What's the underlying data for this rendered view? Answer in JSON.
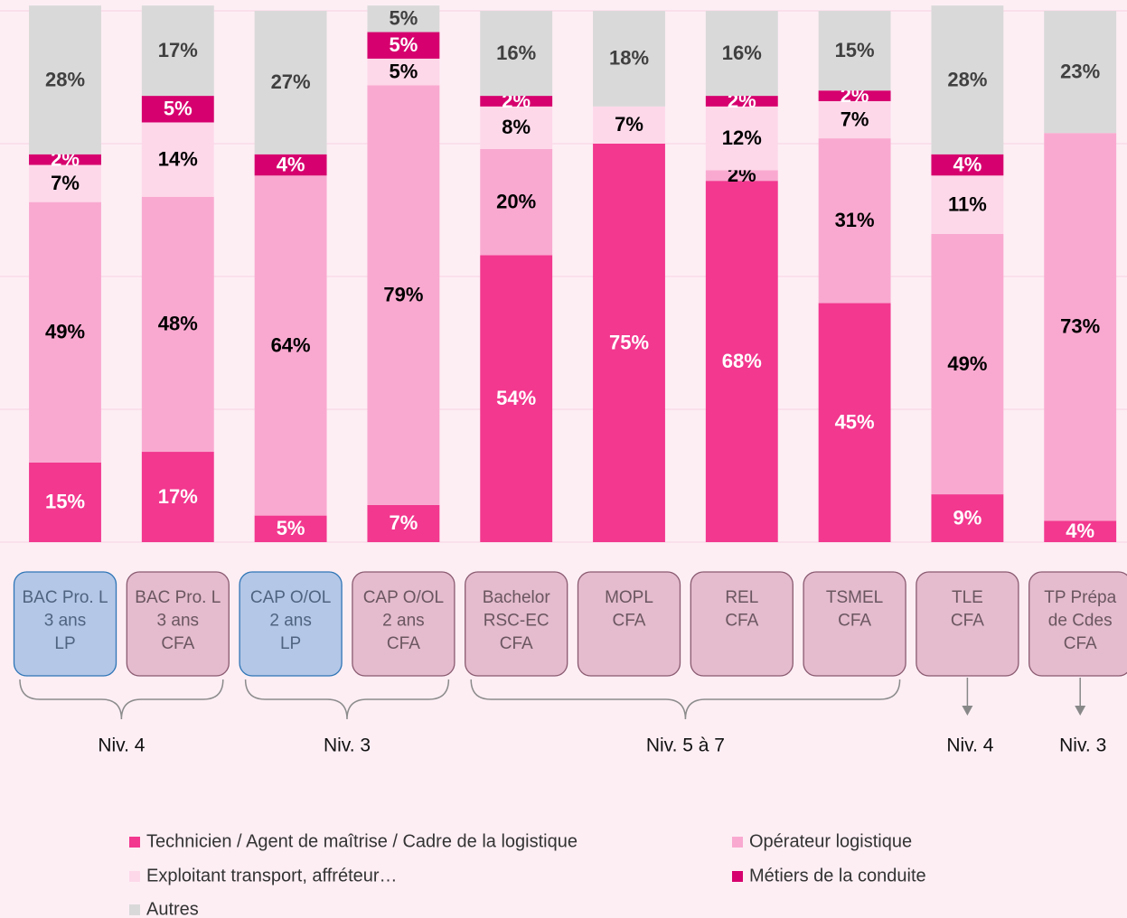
{
  "chart_data": {
    "type": "stacked_bar",
    "categories": [
      [
        "BAC Pro. L",
        "3 ans",
        "LP"
      ],
      [
        "BAC Pro. L",
        "3 ans",
        "CFA"
      ],
      [
        "CAP O/OL",
        "2 ans",
        "LP"
      ],
      [
        "CAP O/OL",
        "2 ans",
        "CFA"
      ],
      [
        "Bachelor",
        "RSC-EC",
        "CFA"
      ],
      [
        "MOPL",
        "CFA"
      ],
      [
        "REL",
        "CFA"
      ],
      [
        "TSMEL",
        "CFA"
      ],
      [
        "TLE",
        "CFA"
      ],
      [
        "TP Prépa",
        "de Cdes",
        "CFA"
      ]
    ],
    "category_colors": [
      "#b4c7e7",
      "#e4bccd",
      "#b4c7e7",
      "#e4bccd",
      "#e4bccd",
      "#e4bccd",
      "#e4bccd",
      "#e4bccd",
      "#e4bccd",
      "#e4bccd"
    ],
    "series": [
      {
        "name": "Technicien / Agent de maîtrise / Cadre de la logistique",
        "color": "#f2388f",
        "label_color": "#ffffff",
        "values": [
          15,
          17,
          5,
          7,
          54,
          75,
          68,
          45,
          9,
          4
        ],
        "value_labels": [
          "15%",
          "17%",
          "5%",
          "7%",
          "54%",
          "75%",
          "68%",
          "45%",
          "9%",
          "4%"
        ]
      },
      {
        "name": "Opérateur logistique",
        "color": "#f9a9d0",
        "label_color": "#000000",
        "values": [
          49,
          48,
          64,
          79,
          20,
          null,
          2,
          31,
          49,
          73
        ],
        "value_labels": [
          "49%",
          "48%",
          "64%",
          "79%",
          "20%",
          null,
          "2%",
          "31%",
          "49%",
          "73%"
        ]
      },
      {
        "name": "Exploitant transport, affréteur…",
        "color": "#fdd8e9",
        "label_color": "#000000",
        "values": [
          7,
          14,
          null,
          5,
          8,
          7,
          12,
          7,
          11,
          null
        ],
        "value_labels": [
          "7%",
          "14%",
          null,
          "5%",
          "8%",
          "7%",
          "12%",
          "7%",
          "11%",
          null
        ]
      },
      {
        "name": "Métiers de la conduite",
        "color": "#d6006e",
        "label_color": "#ffffff",
        "values": [
          2,
          5,
          4,
          5,
          2,
          null,
          2,
          2,
          4,
          null
        ],
        "value_labels": [
          "2%",
          "5%",
          "4%",
          "5%",
          "2%",
          null,
          "2%",
          "2%",
          "4%",
          null
        ]
      },
      {
        "name": "Autres",
        "color": "#d9d9d9",
        "label_color": "#404040",
        "values": [
          28,
          17,
          27,
          5,
          16,
          18,
          16,
          15,
          28,
          23
        ],
        "value_labels": [
          "28%",
          "17%",
          "27%",
          "5%",
          "16%",
          "18%",
          "16%",
          "15%",
          "28%",
          "23%"
        ]
      }
    ],
    "ylim": [
      0,
      100
    ],
    "yticks": [
      0,
      25,
      50,
      75,
      100
    ],
    "grid": true,
    "groups": [
      {
        "label": "Niv. 4",
        "span": [
          0,
          1
        ]
      },
      {
        "label": "Niv. 3",
        "span": [
          2,
          3
        ]
      },
      {
        "label": "Niv. 5 à 7",
        "span": [
          4,
          7
        ]
      },
      {
        "label": "Niv. 4",
        "span": [
          8,
          8
        ]
      },
      {
        "label": "Niv. 3",
        "span": [
          9,
          9
        ]
      }
    ]
  }
}
